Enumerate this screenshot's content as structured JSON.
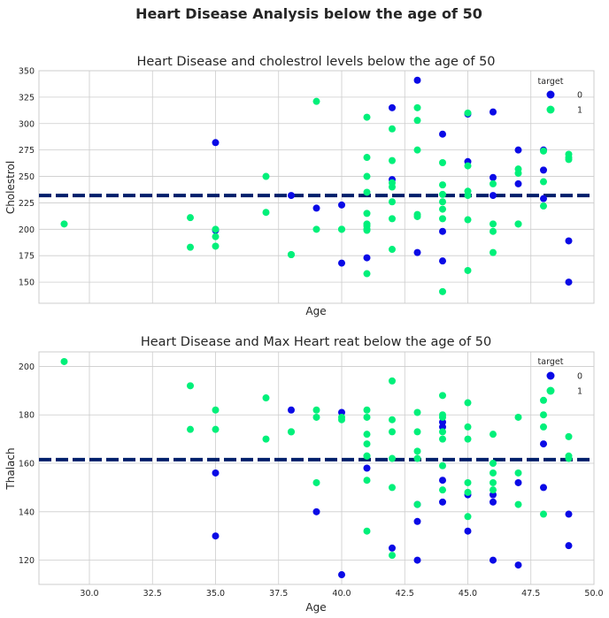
{
  "suptitle": "Heart Disease Analysis below the age of 50",
  "colors": {
    "target_0": "#0a0ae6",
    "target_1": "#00f07a",
    "mean_line": "#001f6b"
  },
  "chart_data": [
    {
      "type": "scatter",
      "title": "Heart Disease and cholestrol levels below the age of 50",
      "xlabel": "Age",
      "ylabel": "Cholestrol",
      "xlim": [
        28,
        50
      ],
      "ylim": [
        130,
        350
      ],
      "xticks": [
        30.0,
        32.5,
        35.0,
        37.5,
        40.0,
        42.5,
        45.0,
        47.5,
        50.0
      ],
      "yticks": [
        150,
        175,
        200,
        225,
        250,
        275,
        300,
        325,
        350
      ],
      "xtick_labels_shown": false,
      "grid": true,
      "legend": {
        "title": "target",
        "placement": "top-right",
        "entries": [
          "0",
          "1"
        ]
      },
      "mean_line": 232,
      "series": [
        {
          "name": "0",
          "x": [
            35,
            35,
            38,
            39,
            40,
            40,
            41,
            42,
            42,
            43,
            43,
            44,
            44,
            44,
            45,
            45,
            46,
            46,
            46,
            47,
            47,
            48,
            48,
            48,
            49,
            49
          ],
          "y": [
            282,
            199,
            232,
            220,
            223,
            168,
            173,
            315,
            247,
            341,
            178,
            290,
            198,
            170,
            309,
            264,
            311,
            249,
            232,
            275,
            243,
            275,
            256,
            229,
            189,
            150
          ]
        },
        {
          "name": "1",
          "x": [
            29,
            34,
            34,
            35,
            35,
            35,
            37,
            37,
            38,
            38,
            39,
            39,
            40,
            40,
            41,
            41,
            41,
            41,
            41,
            41,
            41,
            41,
            41,
            41,
            42,
            42,
            42,
            42,
            42,
            42,
            42,
            43,
            43,
            43,
            43,
            43,
            44,
            44,
            44,
            44,
            44,
            44,
            44,
            45,
            45,
            45,
            45,
            45,
            45,
            46,
            46,
            46,
            46,
            47,
            47,
            47,
            47,
            48,
            48,
            48,
            49,
            49,
            49
          ],
          "y": [
            205,
            211,
            183,
            193,
            184,
            200,
            250,
            216,
            176,
            176,
            321,
            200,
            200,
            200,
            306,
            268,
            250,
            235,
            215,
            205,
            203,
            200,
            199,
            158,
            295,
            265,
            244,
            240,
            226,
            210,
            181,
            315,
            303,
            275,
            214,
            212,
            263,
            242,
            233,
            226,
            219,
            210,
            141,
            310,
            260,
            236,
            232,
            209,
            161,
            243,
            205,
            198,
            178,
            257,
            253,
            205,
            205,
            245,
            222,
            274,
            271,
            266,
            268
          ]
        }
      ]
    },
    {
      "type": "scatter",
      "title": "Heart Disease and Max Heart reat below the age of 50",
      "xlabel": "Age",
      "ylabel": "Thalach",
      "xlim": [
        28,
        50
      ],
      "ylim": [
        110,
        206
      ],
      "xticks": [
        30.0,
        32.5,
        35.0,
        37.5,
        40.0,
        42.5,
        45.0,
        47.5,
        50.0
      ],
      "yticks": [
        120,
        140,
        160,
        180,
        200
      ],
      "xtick_labels_shown": true,
      "grid": true,
      "legend": {
        "title": "target",
        "placement": "top-right",
        "entries": [
          "0",
          "1"
        ]
      },
      "mean_line": 161.5,
      "series": [
        {
          "name": "0",
          "x": [
            35,
            35,
            38,
            39,
            40,
            40,
            41,
            42,
            43,
            43,
            43,
            44,
            44,
            44,
            44,
            45,
            45,
            46,
            46,
            46,
            47,
            47,
            48,
            48,
            49,
            49
          ],
          "y": [
            156,
            130,
            182,
            140,
            181,
            114,
            158,
            125,
            143,
            136,
            120,
            177,
            153,
            144,
            175,
            147,
            132,
            147,
            144,
            120,
            152,
            118,
            168,
            150,
            139,
            126
          ]
        },
        {
          "name": "1",
          "x": [
            29,
            34,
            34,
            35,
            35,
            37,
            37,
            38,
            38,
            39,
            39,
            39,
            40,
            40,
            41,
            41,
            41,
            41,
            41,
            41,
            41,
            41,
            42,
            42,
            42,
            42,
            42,
            42,
            43,
            43,
            43,
            43,
            43,
            44,
            44,
            44,
            44,
            44,
            44,
            44,
            45,
            45,
            45,
            45,
            45,
            45,
            46,
            46,
            46,
            46,
            46,
            47,
            47,
            47,
            48,
            48,
            48,
            48,
            49,
            49,
            49
          ],
          "y": [
            202,
            192,
            174,
            182,
            174,
            187,
            170,
            173,
            173,
            182,
            179,
            152,
            179,
            178,
            182,
            179,
            172,
            168,
            163,
            163,
            153,
            132,
            194,
            178,
            173,
            162,
            150,
            122,
            181,
            173,
            165,
            162,
            143,
            188,
            180,
            179,
            173,
            170,
            159,
            149,
            185,
            175,
            170,
            152,
            148,
            138,
            172,
            160,
            156,
            152,
            149,
            179,
            156,
            143,
            186,
            180,
            175,
            139,
            171,
            163,
            162
          ]
        }
      ]
    }
  ]
}
